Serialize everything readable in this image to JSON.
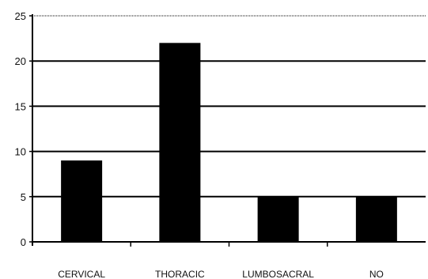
{
  "chart_data": {
    "type": "bar",
    "categories": [
      "CERVICAL",
      "THORACIC",
      "LUMBOSACRAL",
      "NO"
    ],
    "values": [
      9,
      22,
      5,
      5
    ],
    "title": "",
    "xlabel": "",
    "ylabel": "",
    "ylim": [
      0,
      25
    ],
    "yticks": [
      0,
      5,
      10,
      15,
      20,
      25
    ],
    "grid": true,
    "legend": "none",
    "colors": {
      "bar": "#000000",
      "grid": "#000000",
      "axis": "#000000",
      "text": "#111111"
    }
  }
}
